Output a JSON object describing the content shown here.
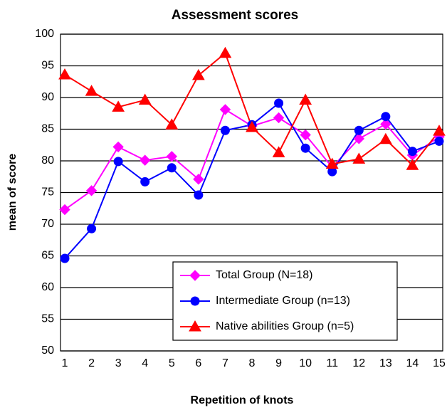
{
  "chart_data": {
    "type": "line",
    "title": "Assessment scores",
    "x_label": "Repetition of knots",
    "y_label": "mean of score",
    "categories": [
      "1",
      "2",
      "3",
      "4",
      "5",
      "6",
      "7",
      "8",
      "9",
      "10",
      "11",
      "12",
      "13",
      "14",
      "15"
    ],
    "series": [
      {
        "name": "Total Group (N=18)",
        "color": "#ff00ff",
        "marker": "diamond",
        "values": [
          72.3,
          75.3,
          82.2,
          80.1,
          80.7,
          77.1,
          88.1,
          85.5,
          86.8,
          84.1,
          79.0,
          83.5,
          85.8,
          80.9,
          83.8
        ]
      },
      {
        "name": "Intermediate Group (n=13)",
        "color": "#0000ff",
        "marker": "circle",
        "values": [
          64.6,
          69.3,
          79.9,
          76.7,
          78.9,
          74.6,
          84.8,
          85.7,
          89.1,
          82.0,
          78.3,
          84.8,
          87.0,
          81.5,
          83.1
        ]
      },
      {
        "name": "Native abilities Group (n=5)",
        "color": "#ff0000",
        "marker": "triangle",
        "values": [
          93.6,
          91.0,
          88.5,
          89.6,
          85.7,
          93.5,
          97.0,
          85.3,
          81.3,
          89.6,
          79.5,
          80.3,
          83.4,
          79.3,
          84.7
        ]
      }
    ],
    "ylim": [
      50,
      100
    ],
    "yticks": [
      50,
      55,
      60,
      65,
      70,
      75,
      80,
      85,
      90,
      95,
      100
    ],
    "grid": true
  }
}
